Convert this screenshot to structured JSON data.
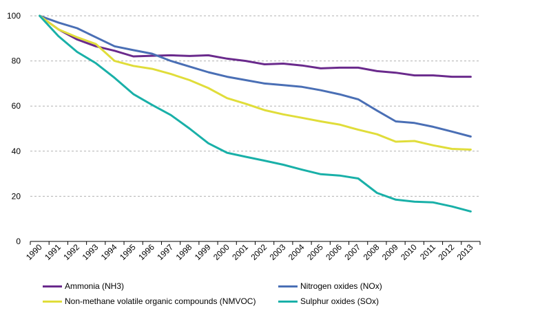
{
  "chart_data": {
    "type": "line",
    "title": "",
    "xlabel": "",
    "ylabel": "",
    "ylim": [
      0,
      100
    ],
    "yticks": [
      0,
      20,
      40,
      60,
      80,
      100
    ],
    "grid": "horizontal dashed",
    "legend_position": "bottom",
    "categories": [
      "1990",
      "1991",
      "1992",
      "1993",
      "1994",
      "1995",
      "1996",
      "1997",
      "1998",
      "1999",
      "2000",
      "2001",
      "2002",
      "2003",
      "2004",
      "2005",
      "2006",
      "2007",
      "2008",
      "2009",
      "2010",
      "2011",
      "2012",
      "2013"
    ],
    "series": [
      {
        "name": "Ammonia (NH3)",
        "color": "#6a2a8c",
        "values": [
          100,
          94,
          89.5,
          86.5,
          84.5,
          82,
          82.3,
          82.5,
          82.2,
          82.5,
          81,
          80,
          78.5,
          78.8,
          78,
          76.7,
          77,
          77,
          75.5,
          74.8,
          73.6,
          73.6,
          73,
          73
        ]
      },
      {
        "name": "Nitrogen oxides (NOx)",
        "color": "#4a6fb5",
        "values": [
          100,
          97,
          94.5,
          90.5,
          86.5,
          84.8,
          83.2,
          80,
          77.5,
          75,
          73,
          71.5,
          70,
          69.3,
          68.5,
          67,
          65.2,
          63,
          58,
          53.2,
          52.5,
          50.8,
          48.7,
          46.5
        ]
      },
      {
        "name": "Non-methane volatile organic compounds (NMVOC)",
        "color": "#e0dd3a",
        "values": [
          100,
          94,
          90.5,
          87.5,
          80,
          77.8,
          76.5,
          74.2,
          71.5,
          68,
          63.5,
          61,
          58.2,
          56.3,
          54.8,
          53.2,
          51.8,
          49.5,
          47.5,
          44.2,
          44.5,
          42.6,
          41,
          40.7
        ]
      },
      {
        "name": "Sulphur oxides (SOx)",
        "color": "#19b0a8",
        "values": [
          100,
          91,
          84,
          79,
          72.5,
          65.3,
          60.5,
          56,
          50,
          43.5,
          39.3,
          37.5,
          35.8,
          34,
          31.8,
          29.8,
          29.2,
          27.9,
          21.5,
          18.5,
          17.6,
          17.3,
          15.5,
          13.3
        ]
      }
    ]
  }
}
